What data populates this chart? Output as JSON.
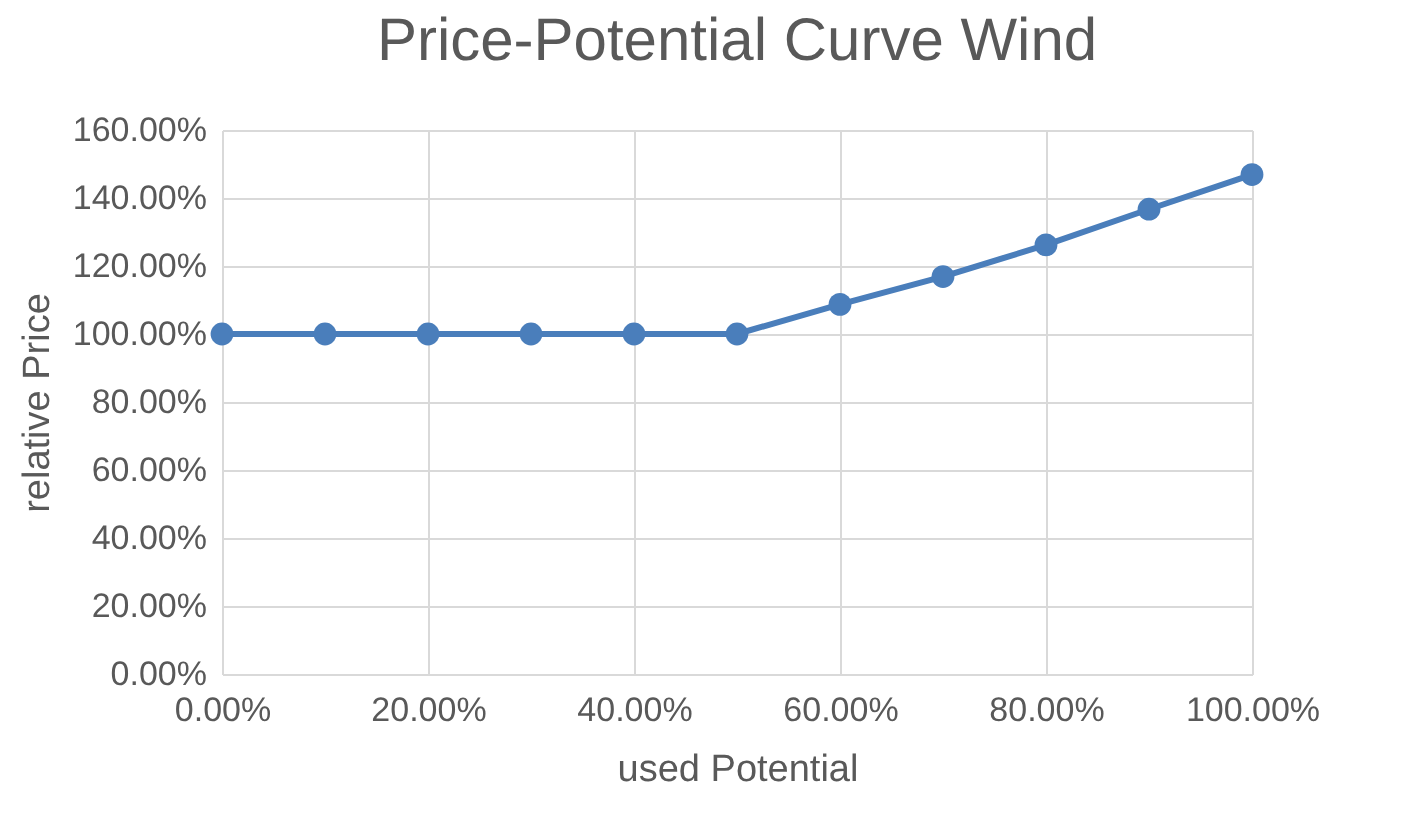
{
  "chart_data": {
    "type": "line",
    "title": "Price-Potential Curve Wind",
    "xlabel": "used Potential",
    "ylabel": "relative Price",
    "x": [
      0,
      10,
      20,
      30,
      40,
      50,
      60,
      70,
      80,
      90,
      100
    ],
    "series": [
      {
        "color": "#4a7ebb",
        "values": [
          100,
          100,
          100,
          100,
          100,
          100,
          108.7,
          116.9,
          126.2,
          136.7,
          146.9
        ]
      }
    ],
    "xlim": [
      0,
      100
    ],
    "xticks": [
      {
        "value": 0,
        "label": "0.00%"
      },
      {
        "value": 20,
        "label": "20.00%"
      },
      {
        "value": 40,
        "label": "40.00%"
      },
      {
        "value": 60,
        "label": "60.00%"
      },
      {
        "value": 80,
        "label": "80.00%"
      },
      {
        "value": 100,
        "label": "100.00%"
      }
    ],
    "ylim": [
      0,
      160
    ],
    "yticks": [
      {
        "value": 0,
        "label": "0.00%"
      },
      {
        "value": 20,
        "label": "20.00%"
      },
      {
        "value": 40,
        "label": "40.00%"
      },
      {
        "value": 60,
        "label": "60.00%"
      },
      {
        "value": 80,
        "label": "80.00%"
      },
      {
        "value": 100,
        "label": "100.00%"
      },
      {
        "value": 120,
        "label": "120.00%"
      },
      {
        "value": 140,
        "label": "140.00%"
      },
      {
        "value": 160,
        "label": "160.00%"
      }
    ],
    "grid": true,
    "marker": "circle",
    "line_style": "solid"
  }
}
